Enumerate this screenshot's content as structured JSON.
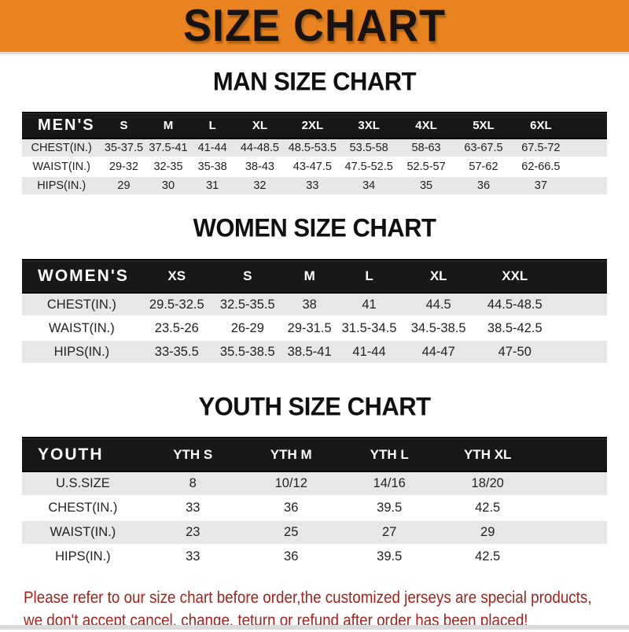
{
  "banner": {
    "title": "SIZE CHART"
  },
  "chart_data": [
    {
      "type": "table",
      "title": "MAN SIZE CHART",
      "columns": [
        "MEN'S",
        "S",
        "M",
        "L",
        "XL",
        "2XL",
        "3XL",
        "4XL",
        "5XL",
        "6XL"
      ],
      "rows": [
        [
          "CHEST(IN.)",
          "35-37.5",
          "37.5-41",
          "41-44",
          "44-48.5",
          "48.5-53.5",
          "53.5-58",
          "58-63",
          "63-67.5",
          "67.5-72"
        ],
        [
          "WAIST(IN.)",
          "29-32",
          "32-35",
          "35-38",
          "38-43",
          "43-47.5",
          "47.5-52.5",
          "52.5-57",
          "57-62",
          "62-66.5"
        ],
        [
          "HIPS(IN.)",
          "29",
          "30",
          "31",
          "32",
          "33",
          "34",
          "35",
          "36",
          "37"
        ]
      ]
    },
    {
      "type": "table",
      "title": "WOMEN SIZE CHART",
      "columns": [
        "WOMEN'S",
        "XS",
        "S",
        "M",
        "L",
        "XL",
        "XXL"
      ],
      "rows": [
        [
          "CHEST(IN.)",
          "29.5-32.5",
          "32.5-35.5",
          "38",
          "41",
          "44.5",
          "44.5-48.5"
        ],
        [
          "WAIST(IN.)",
          "23.5-26",
          "26-29",
          "29-31.5",
          "31.5-34.5",
          "34.5-38.5",
          "38.5-42.5"
        ],
        [
          "HIPS(IN.)",
          "33-35.5",
          "35.5-38.5",
          "38.5-41",
          "41-44",
          "44-47",
          "47-50"
        ]
      ]
    },
    {
      "type": "table",
      "title": "YOUTH SIZE CHART",
      "columns": [
        "YOUTH",
        "YTH S",
        "YTH M",
        "YTH L",
        "YTH XL"
      ],
      "rows": [
        [
          "U.S.SIZE",
          "8",
          "10/12",
          "14/16",
          "18/20"
        ],
        [
          "CHEST(IN.)",
          "33",
          "36",
          "39.5",
          "42.5"
        ],
        [
          "WAIST(IN.)",
          "23",
          "25",
          "27",
          "29"
        ],
        [
          "HIPS(IN.)",
          "33",
          "36",
          "39.5",
          "42.5"
        ]
      ]
    }
  ],
  "footer": {
    "line1": "Please refer to our size chart before order,the customized jerseys are special products,",
    "line2": "we don't accept cancel, change, teturn or refund after order has been placed!"
  },
  "colors": {
    "banner_bg": "#E8831F",
    "banner_text": "#161310",
    "bar_bg": "#181818",
    "bar_text": "#FFFFFF",
    "stripe": "#E7E7E7",
    "note_red": "#A3231E"
  }
}
